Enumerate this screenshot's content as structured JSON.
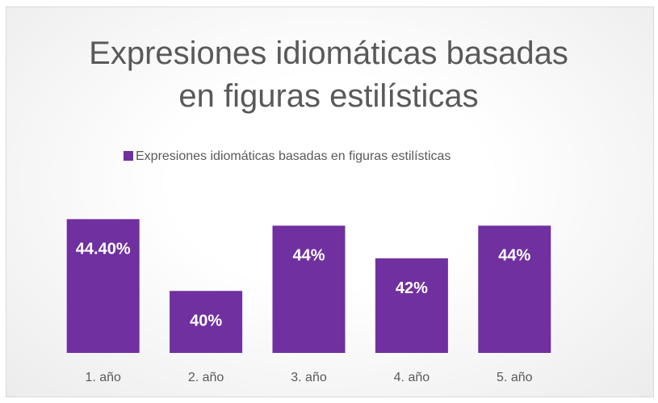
{
  "chart_data": {
    "type": "bar",
    "title": "Expresiones idiomáticas basadas en figuras estilísticas",
    "categories": [
      "1. año",
      "2. año",
      "3. año",
      "4. año",
      "5. año"
    ],
    "series": [
      {
        "name": "Expresiones idiomáticas basadas en figuras estilísticas",
        "color": "#7030a0",
        "values": [
          44.4,
          40,
          44,
          42,
          44
        ],
        "value_labels": [
          "44.40%",
          "40%",
          "44%",
          "42%",
          "44%"
        ]
      }
    ],
    "ylim": [
      36.2,
      46
    ],
    "legend": "top"
  }
}
